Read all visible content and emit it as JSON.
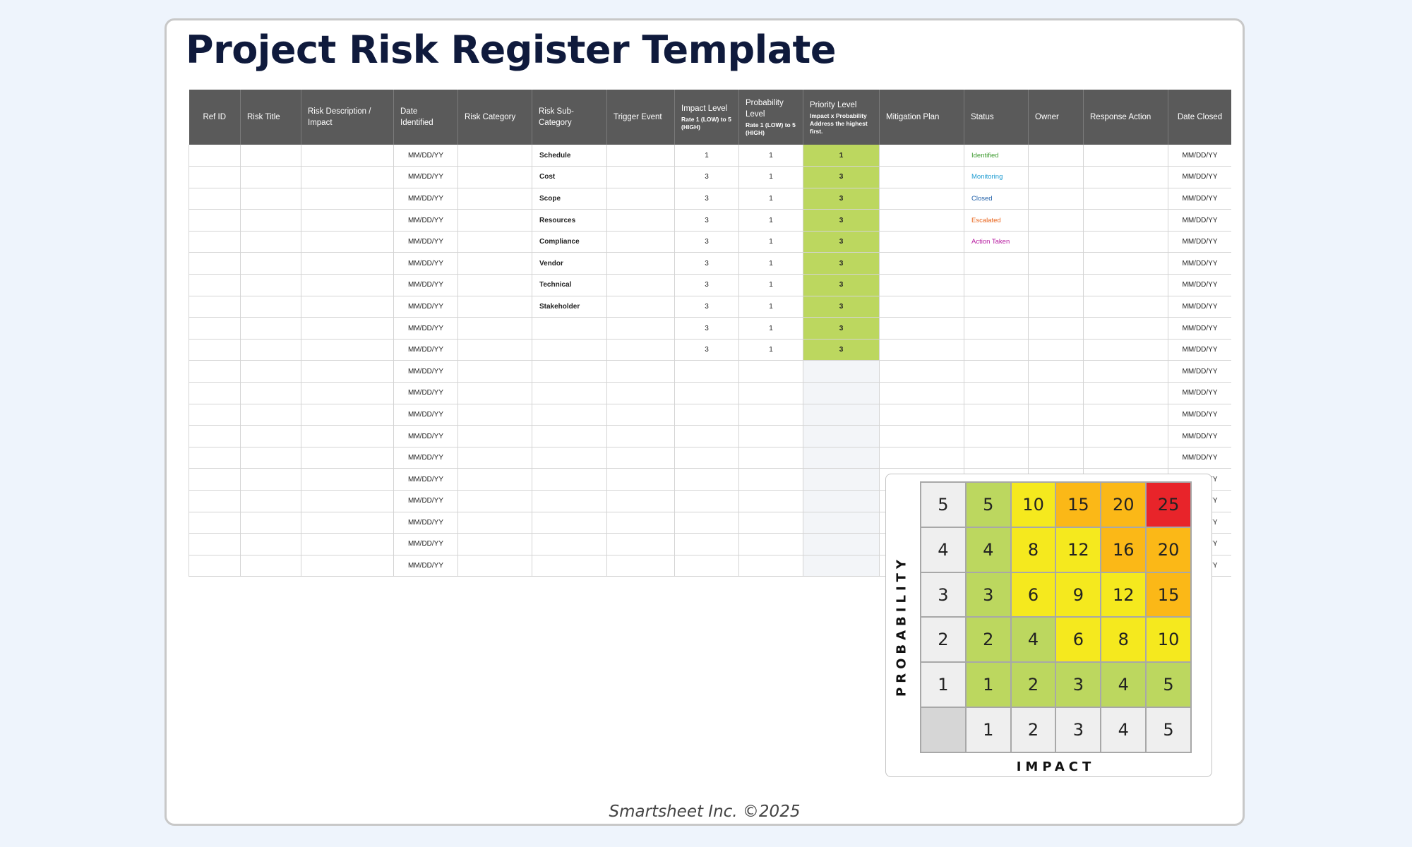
{
  "title": "Project Risk Register Template",
  "footer": "Smartsheet Inc. ©2025",
  "colors": {
    "header_bg": "#5a5a5a",
    "priority_fill": "#bcd75f",
    "status_identified": "#3c9a2e",
    "status_monitoring": "#1d9bd1",
    "status_closed": "#1f5fa8",
    "status_escalated": "#e8631a",
    "status_action_taken": "#b5179e",
    "matrix_green": "#bcd75f",
    "matrix_yellow": "#f5e91e",
    "matrix_orange": "#fbb817",
    "matrix_red": "#e8242a",
    "matrix_axis": "#efefef",
    "matrix_corner": "#d6d6d6"
  },
  "headers": [
    {
      "main": "Ref ID"
    },
    {
      "main": "Risk Title"
    },
    {
      "main": "Risk Description / Impact"
    },
    {
      "main": "Date Identified"
    },
    {
      "main": "Risk Category"
    },
    {
      "main": "Risk Sub-Category"
    },
    {
      "main": "Trigger Event"
    },
    {
      "main": "Impact Level",
      "sub": "Rate 1 (LOW) to 5 (HIGH)"
    },
    {
      "main": "Probability Level",
      "sub": "Rate 1 (LOW) to 5 (HIGH)"
    },
    {
      "main": "Priority Level",
      "sub": "Impact x Probability Address the highest first."
    },
    {
      "main": "Mitigation Plan"
    },
    {
      "main": "Status"
    },
    {
      "main": "Owner"
    },
    {
      "main": "Response Action"
    },
    {
      "main": "Date Closed"
    }
  ],
  "rows": [
    {
      "date_identified": "MM/DD/YY",
      "sub_category": "Schedule",
      "impact": "1",
      "probability": "1",
      "priority": "1",
      "status": "Identified",
      "status_color": "#3c9a2e",
      "date_closed": "MM/DD/YY"
    },
    {
      "date_identified": "MM/DD/YY",
      "sub_category": "Cost",
      "impact": "3",
      "probability": "1",
      "priority": "3",
      "status": "Monitoring",
      "status_color": "#1d9bd1",
      "date_closed": "MM/DD/YY"
    },
    {
      "date_identified": "MM/DD/YY",
      "sub_category": "Scope",
      "impact": "3",
      "probability": "1",
      "priority": "3",
      "status": "Closed",
      "status_color": "#1f5fa8",
      "date_closed": "MM/DD/YY"
    },
    {
      "date_identified": "MM/DD/YY",
      "sub_category": "Resources",
      "impact": "3",
      "probability": "1",
      "priority": "3",
      "status": "Escalated",
      "status_color": "#e8631a",
      "date_closed": "MM/DD/YY"
    },
    {
      "date_identified": "MM/DD/YY",
      "sub_category": "Compliance",
      "impact": "3",
      "probability": "1",
      "priority": "3",
      "status": "Action Taken",
      "status_color": "#b5179e",
      "date_closed": "MM/DD/YY"
    },
    {
      "date_identified": "MM/DD/YY",
      "sub_category": "Vendor",
      "impact": "3",
      "probability": "1",
      "priority": "3",
      "status": "",
      "date_closed": "MM/DD/YY"
    },
    {
      "date_identified": "MM/DD/YY",
      "sub_category": "Technical",
      "impact": "3",
      "probability": "1",
      "priority": "3",
      "status": "",
      "date_closed": "MM/DD/YY"
    },
    {
      "date_identified": "MM/DD/YY",
      "sub_category": "Stakeholder",
      "impact": "3",
      "probability": "1",
      "priority": "3",
      "status": "",
      "date_closed": "MM/DD/YY"
    },
    {
      "date_identified": "MM/DD/YY",
      "sub_category": "",
      "impact": "3",
      "probability": "1",
      "priority": "3",
      "status": "",
      "date_closed": "MM/DD/YY"
    },
    {
      "date_identified": "MM/DD/YY",
      "sub_category": "",
      "impact": "3",
      "probability": "1",
      "priority": "3",
      "status": "",
      "date_closed": "MM/DD/YY"
    },
    {
      "date_identified": "MM/DD/YY",
      "sub_category": "",
      "impact": "",
      "probability": "",
      "priority": "",
      "status": "",
      "date_closed": "MM/DD/YY"
    },
    {
      "date_identified": "MM/DD/YY",
      "sub_category": "",
      "impact": "",
      "probability": "",
      "priority": "",
      "status": "",
      "date_closed": "MM/DD/YY"
    },
    {
      "date_identified": "MM/DD/YY",
      "sub_category": "",
      "impact": "",
      "probability": "",
      "priority": "",
      "status": "",
      "date_closed": "MM/DD/YY"
    },
    {
      "date_identified": "MM/DD/YY",
      "sub_category": "",
      "impact": "",
      "probability": "",
      "priority": "",
      "status": "",
      "date_closed": "MM/DD/YY"
    },
    {
      "date_identified": "MM/DD/YY",
      "sub_category": "",
      "impact": "",
      "probability": "",
      "priority": "",
      "status": "",
      "date_closed": "MM/DD/YY"
    },
    {
      "date_identified": "MM/DD/YY",
      "sub_category": "",
      "impact": "",
      "probability": "",
      "priority": "",
      "status": "",
      "date_closed": "MM/DD/YY"
    },
    {
      "date_identified": "MM/DD/YY",
      "sub_category": "",
      "impact": "",
      "probability": "",
      "priority": "",
      "status": "",
      "date_closed": "MM/DD/YY"
    },
    {
      "date_identified": "MM/DD/YY",
      "sub_category": "",
      "impact": "",
      "probability": "",
      "priority": "",
      "status": "",
      "date_closed": "MM/DD/YY"
    },
    {
      "date_identified": "MM/DD/YY",
      "sub_category": "",
      "impact": "",
      "probability": "",
      "priority": "",
      "status": "",
      "date_closed": "MM/DD/YY"
    },
    {
      "date_identified": "MM/DD/YY",
      "sub_category": "",
      "impact": "",
      "probability": "",
      "priority": "",
      "status": "",
      "date_closed": "MM/DD/YY"
    }
  ],
  "matrix": {
    "probability_label": "PROBABILITY",
    "impact_label": "IMPACT",
    "rows": [
      {
        "prob": "5",
        "cells": [
          {
            "v": "5",
            "c": "green"
          },
          {
            "v": "10",
            "c": "yellow"
          },
          {
            "v": "15",
            "c": "orange"
          },
          {
            "v": "20",
            "c": "orange"
          },
          {
            "v": "25",
            "c": "red"
          }
        ]
      },
      {
        "prob": "4",
        "cells": [
          {
            "v": "4",
            "c": "green"
          },
          {
            "v": "8",
            "c": "yellow"
          },
          {
            "v": "12",
            "c": "yellow"
          },
          {
            "v": "16",
            "c": "orange"
          },
          {
            "v": "20",
            "c": "orange"
          }
        ]
      },
      {
        "prob": "3",
        "cells": [
          {
            "v": "3",
            "c": "green"
          },
          {
            "v": "6",
            "c": "yellow"
          },
          {
            "v": "9",
            "c": "yellow"
          },
          {
            "v": "12",
            "c": "yellow"
          },
          {
            "v": "15",
            "c": "orange"
          }
        ]
      },
      {
        "prob": "2",
        "cells": [
          {
            "v": "2",
            "c": "green"
          },
          {
            "v": "4",
            "c": "green"
          },
          {
            "v": "6",
            "c": "yellow"
          },
          {
            "v": "8",
            "c": "yellow"
          },
          {
            "v": "10",
            "c": "yellow"
          }
        ]
      },
      {
        "prob": "1",
        "cells": [
          {
            "v": "1",
            "c": "green"
          },
          {
            "v": "2",
            "c": "green"
          },
          {
            "v": "3",
            "c": "green"
          },
          {
            "v": "4",
            "c": "green"
          },
          {
            "v": "5",
            "c": "green"
          }
        ]
      }
    ],
    "impact_axis": [
      "1",
      "2",
      "3",
      "4",
      "5"
    ]
  }
}
